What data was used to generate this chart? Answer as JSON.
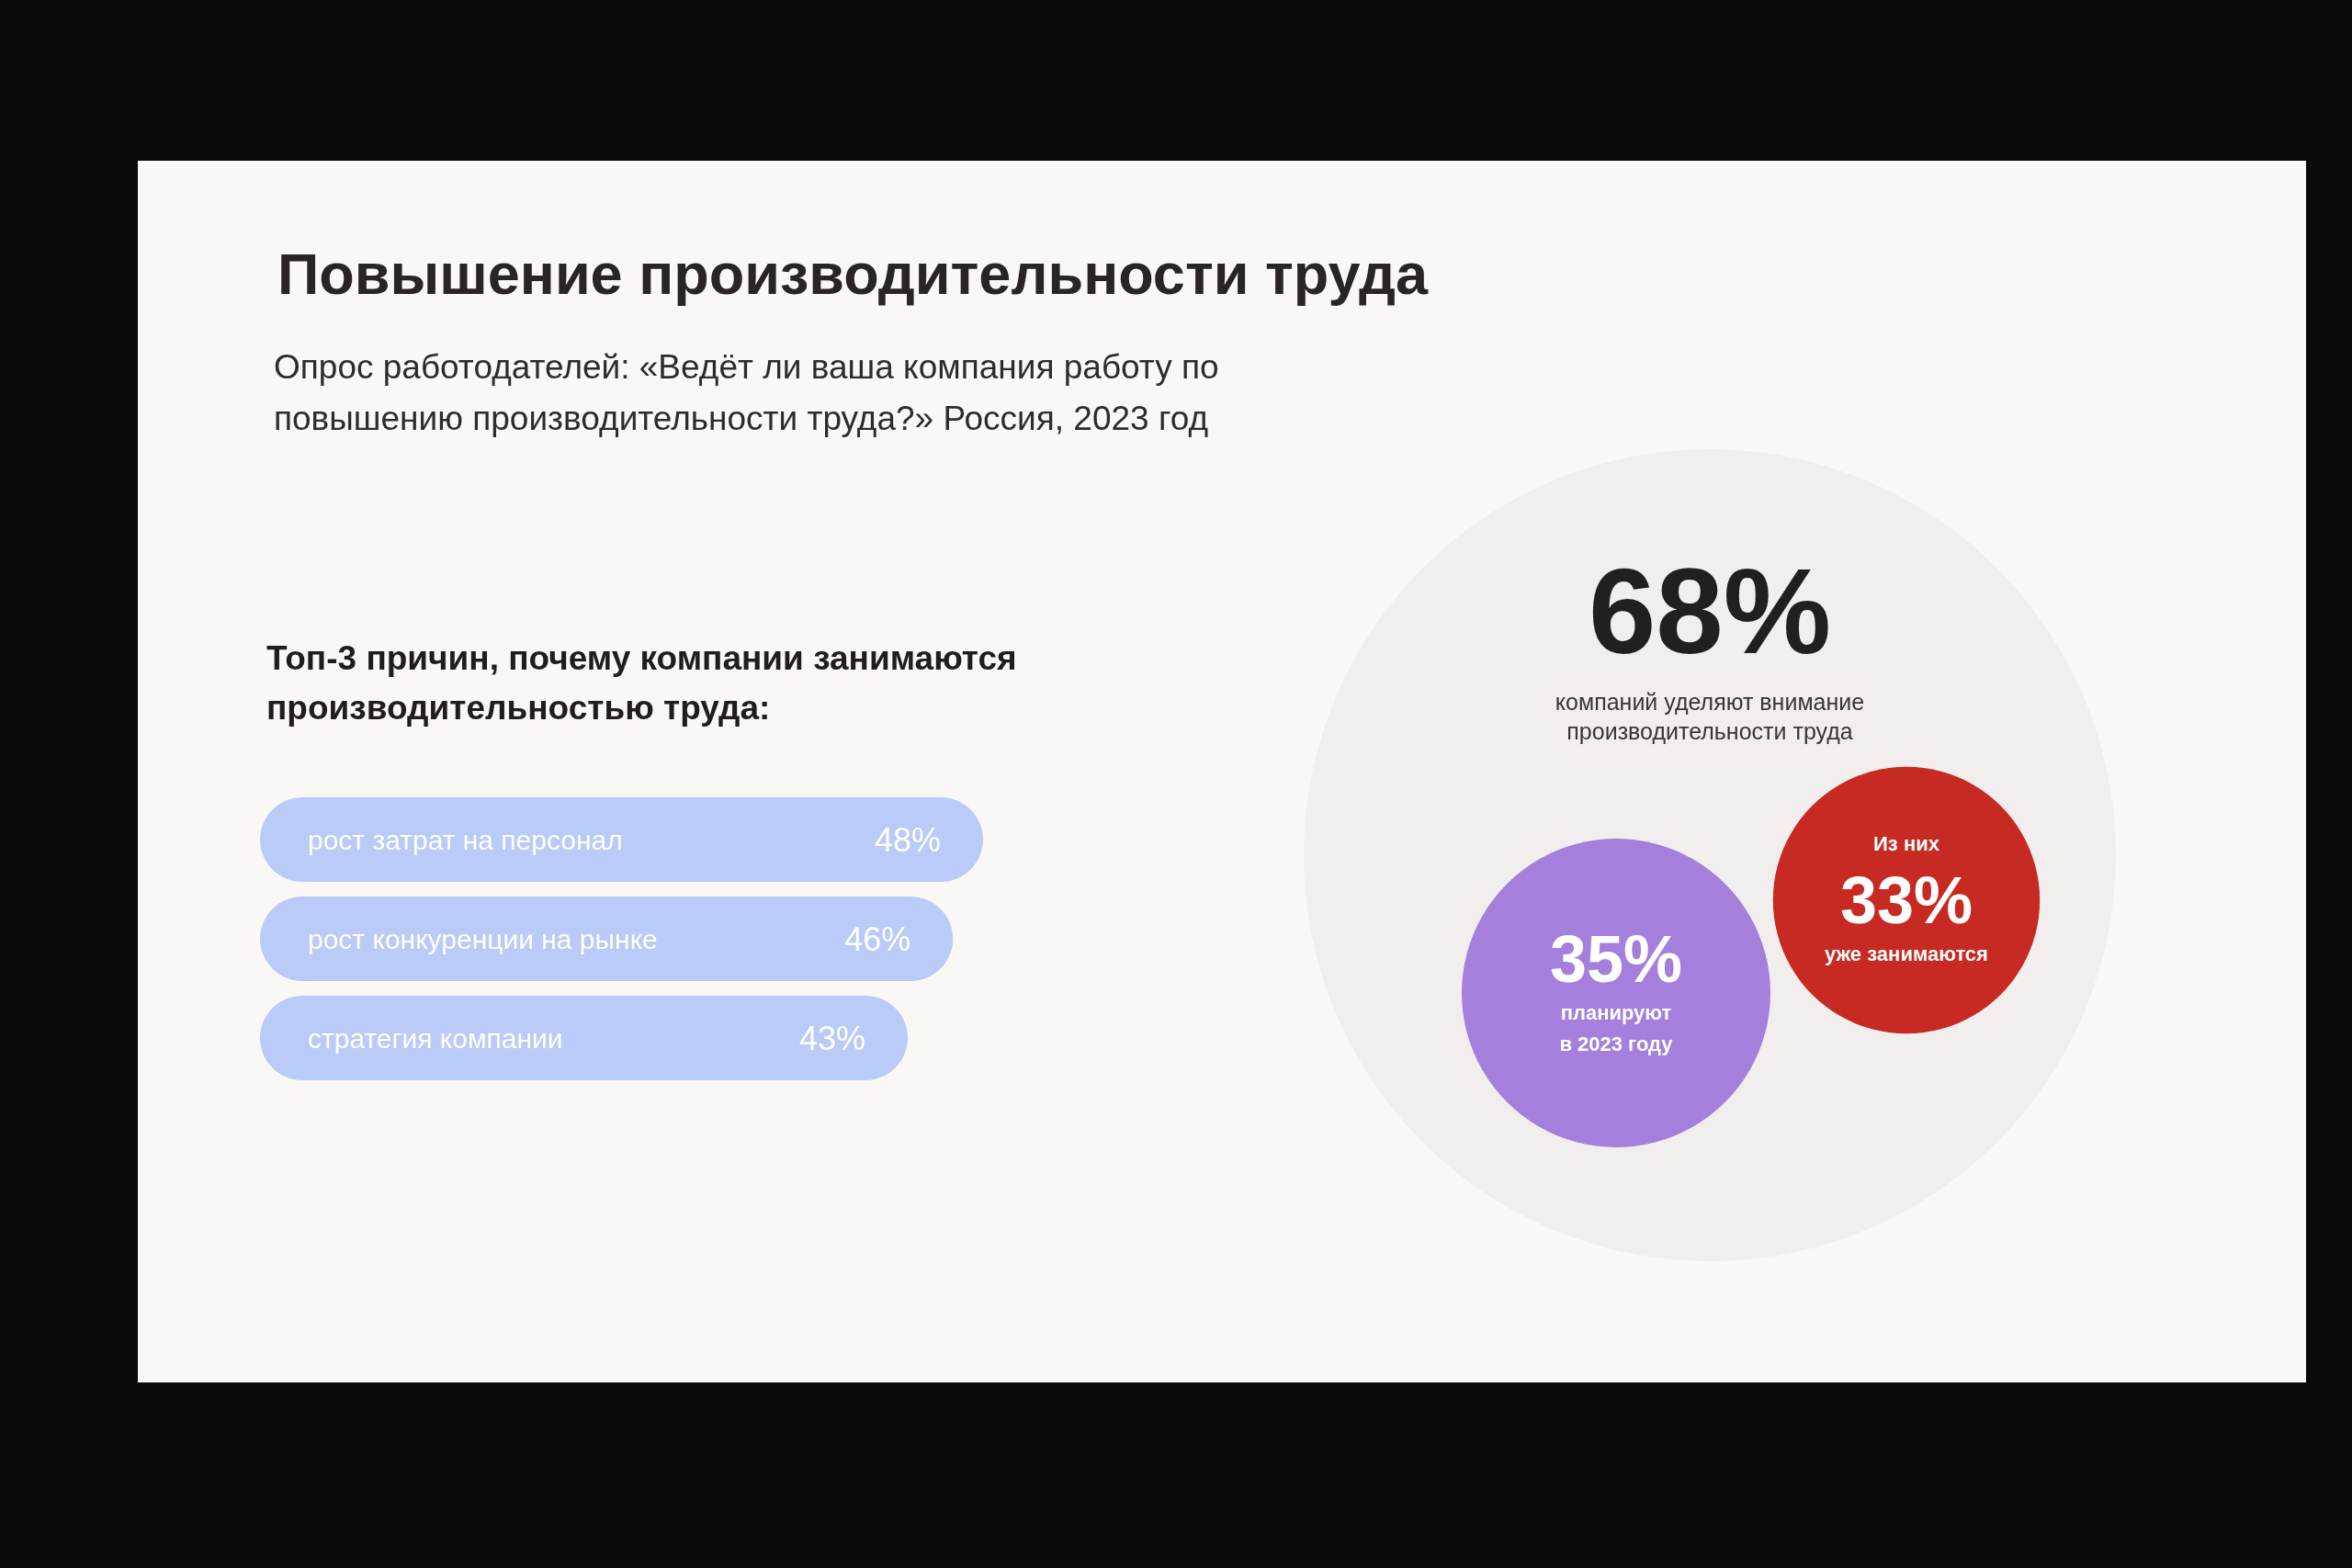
{
  "chart_data": [
    {
      "type": "bar",
      "orientation": "horizontal",
      "title": "Повышение производительности труда",
      "subtitle": "Опрос работодателей: «Ведёт ли ваша компания работу по повышению производительности труда?» Россия, 2023 год",
      "annotations": [
        "Топ-3 причин, почему компании занимаются производительностью труда:"
      ],
      "categories": [
        "рост затрат на персонал",
        "рост конкуренции на рынке",
        "стратегия компании"
      ],
      "values": [
        48,
        46,
        43
      ],
      "value_labels": [
        "48%",
        "46%",
        "43%"
      ],
      "color": "#bacbf8",
      "tick_labels": "y"
    },
    {
      "type": "other",
      "categories": [
        "компаний уделяют внимание производительности труда",
        "планируют в 2023 году",
        "уже занимаются"
      ],
      "values": [
        68,
        35,
        33
      ],
      "value_labels": [
        "68%",
        "35%",
        "33%"
      ],
      "colors": [
        "#f2eeed",
        "#a47fdc",
        "#c72a22"
      ],
      "annotations": [
        "Из них"
      ]
    }
  ]
}
